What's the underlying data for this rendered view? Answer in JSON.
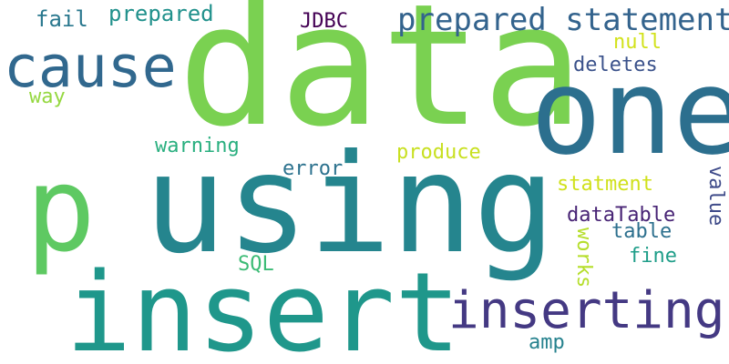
{
  "words": {
    "data": {
      "text": "data",
      "color": "#7ad151"
    },
    "one": {
      "text": "one",
      "color": "#2c6f8e"
    },
    "using": {
      "text": "using",
      "color": "#25858e"
    },
    "insert": {
      "text": "insert",
      "color": "#1f978b"
    },
    "p": {
      "text": "p",
      "color": "#5ec962"
    },
    "cause": {
      "text": "cause",
      "color": "#31688e"
    },
    "inserting": {
      "text": "inserting",
      "color": "#443983"
    },
    "prepared_statement": {
      "text": "prepared statement",
      "color": "#33638d"
    },
    "fail": {
      "text": "fail",
      "color": "#2a788e"
    },
    "prepared": {
      "text": "prepared",
      "color": "#21918c"
    },
    "jdbc": {
      "text": "JDBC",
      "color": "#440154"
    },
    "null": {
      "text": "null",
      "color": "#d2e21b"
    },
    "deletes": {
      "text": "deletes",
      "color": "#3b528b"
    },
    "way": {
      "text": "way",
      "color": "#95d840"
    },
    "warning": {
      "text": "warning",
      "color": "#29af7f"
    },
    "produce": {
      "text": "produce",
      "color": "#c8e020"
    },
    "error": {
      "text": "error",
      "color": "#2c728e"
    },
    "statment": {
      "text": "statment",
      "color": "#d0e11c"
    },
    "datatable": {
      "text": "dataTable",
      "color": "#482475"
    },
    "table": {
      "text": "table",
      "color": "#2d708e"
    },
    "value": {
      "text": "value",
      "color": "#3e4a89"
    },
    "works": {
      "text": "works",
      "color": "#b5de2b"
    },
    "fine": {
      "text": "fine",
      "color": "#1f9e89"
    },
    "sql": {
      "text": "SQL",
      "color": "#3bbb75"
    },
    "amp": {
      "text": "amp",
      "color": "#26828e"
    }
  }
}
